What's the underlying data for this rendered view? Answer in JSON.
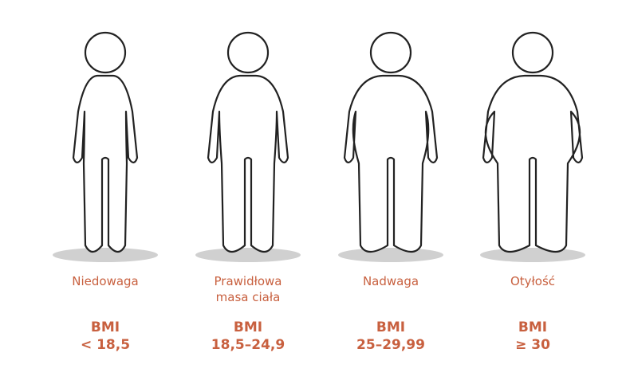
{
  "accent_color": "#c8603f",
  "categories": [
    {
      "name": "Niedowaga",
      "bmi_label": "BMI",
      "bmi_range": "< 18,5"
    },
    {
      "name": "Prawidłowa\nmasa ciała",
      "bmi_label": "BMI",
      "bmi_range": "18,5–24,9"
    },
    {
      "name": "Nadwaga",
      "bmi_label": "BMI",
      "bmi_range": "25–29,99"
    },
    {
      "name": "Otyłość",
      "bmi_label": "BMI",
      "bmi_range": "≥ 30"
    }
  ]
}
